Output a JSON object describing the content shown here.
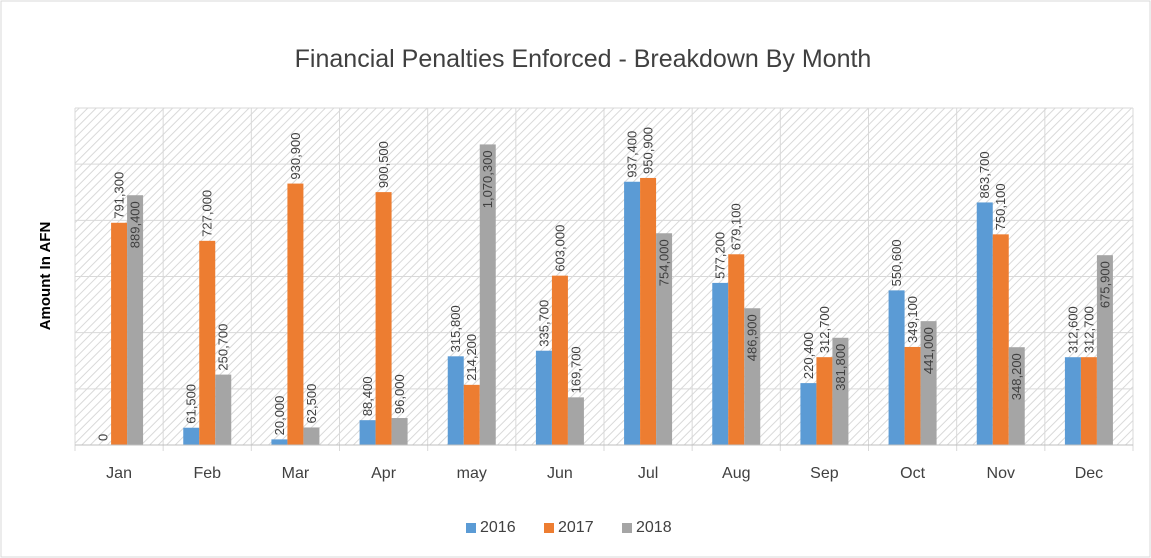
{
  "chart_data": {
    "type": "bar",
    "title": "Financial Penalties Enforced - Breakdown By Month",
    "y_label": "Amount In AFN",
    "categories": [
      "Jan",
      "Feb",
      "Mar",
      "Apr",
      "may",
      "Jun",
      "Jul",
      "Aug",
      "Sep",
      "Oct",
      "Nov",
      "Dec"
    ],
    "series": [
      {
        "name": "2016",
        "color": "#5b9bd5",
        "values": [
          0,
          61500,
          20000,
          88400,
          315800,
          335700,
          937400,
          577200,
          220400,
          550600,
          863700,
          312600
        ],
        "value_labels": [
          "0",
          "61,500",
          "20,000",
          "88,400",
          "315,800",
          "335,700",
          "937,400",
          "577,200",
          "220,400",
          "550,600",
          "863,700",
          "312,600"
        ]
      },
      {
        "name": "2017",
        "color": "#ed7d31",
        "values": [
          791300,
          727000,
          930900,
          900500,
          214200,
          603000,
          950900,
          679100,
          312700,
          349100,
          750100,
          312700
        ],
        "value_labels": [
          "791,300",
          "727,000",
          "930,900",
          "900,500",
          "214,200",
          "603,000",
          "950,900",
          "679,100",
          "312,700",
          "349,100",
          "750,100",
          "312,700"
        ]
      },
      {
        "name": "2018",
        "color": "#a5a5a5",
        "values": [
          889400,
          250700,
          62500,
          96000,
          1070300,
          169700,
          754000,
          486900,
          381800,
          441000,
          348200,
          675900
        ],
        "value_labels": [
          "889,400",
          "250,700",
          "62,500",
          "96,000",
          "1,070,300",
          "169,700",
          "754,000",
          "486,900",
          "381,800",
          "441,000",
          "348,200",
          "675,900"
        ]
      }
    ],
    "ylim": [
      0,
      1200000
    ],
    "yticks": [
      0,
      200000,
      400000,
      600000,
      800000,
      1000000,
      1200000
    ],
    "grid": true,
    "legend": "bottom"
  }
}
